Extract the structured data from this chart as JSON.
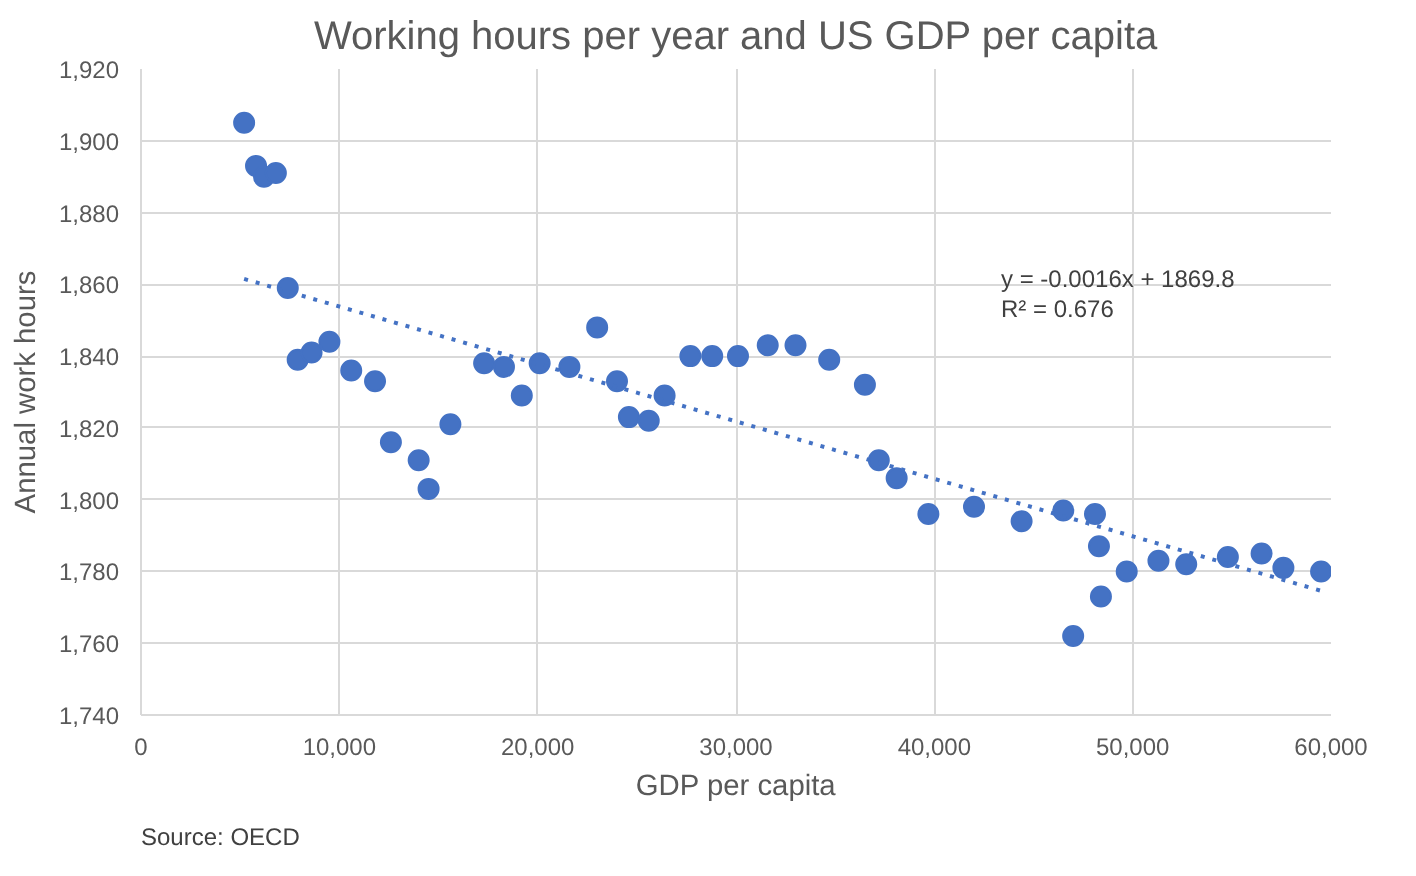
{
  "chart_data": {
    "type": "scatter",
    "title": "Working hours per year and US GDP per capita",
    "xlabel": "GDP per capita",
    "ylabel": "Annual work hours",
    "xlim": [
      0,
      60000
    ],
    "xticks": [
      {
        "value": 0,
        "label": "0"
      },
      {
        "value": 10000,
        "label": "10,000"
      },
      {
        "value": 20000,
        "label": "20,000"
      },
      {
        "value": 30000,
        "label": "30,000"
      },
      {
        "value": 40000,
        "label": "40,000"
      },
      {
        "value": 50000,
        "label": "50,000"
      },
      {
        "value": 60000,
        "label": "60,000"
      }
    ],
    "ylim": [
      1740,
      1920
    ],
    "yticks": [
      {
        "value": 1740,
        "label": "1,740"
      },
      {
        "value": 1760,
        "label": "1,760"
      },
      {
        "value": 1780,
        "label": "1,780"
      },
      {
        "value": 1800,
        "label": "1,800"
      },
      {
        "value": 1820,
        "label": "1,820"
      },
      {
        "value": 1840,
        "label": "1,840"
      },
      {
        "value": 1860,
        "label": "1,860"
      },
      {
        "value": 1880,
        "label": "1,880"
      },
      {
        "value": 1900,
        "label": "1,900"
      },
      {
        "value": 1920,
        "label": "1,920"
      }
    ],
    "grid": true,
    "series": [
      {
        "marker": "circle",
        "color": "#4472c4",
        "x": [
          5200,
          5800,
          6200,
          6800,
          7400,
          7900,
          8600,
          9500,
          10600,
          11800,
          12600,
          14000,
          14500,
          15600,
          17300,
          18300,
          19200,
          20100,
          21600,
          23000,
          24000,
          24600,
          25600,
          26400,
          27700,
          28800,
          30100,
          31600,
          33000,
          34700,
          36500,
          37200,
          38100,
          39700,
          42000,
          44400,
          46500,
          47000,
          48100,
          48300,
          48400,
          49700,
          51300,
          52700,
          54800,
          56500,
          57600,
          59500
        ],
        "values": [
          1905,
          1893,
          1890,
          1891,
          1859,
          1839,
          1841,
          1844,
          1836,
          1833,
          1816,
          1811,
          1803,
          1821,
          1838,
          1837,
          1829,
          1838,
          1837,
          1848,
          1833,
          1823,
          1822,
          1829,
          1840,
          1840,
          1840,
          1843,
          1843,
          1839,
          1832,
          1811,
          1806,
          1796,
          1798,
          1794,
          1797,
          1762,
          1796,
          1787,
          1773,
          1780,
          1783,
          1782,
          1784,
          1785,
          1781,
          1780
        ]
      },
      {
        "type": "line",
        "color": "#4472c4",
        "line_style": "dotted",
        "x": [
          5200,
          59500
        ],
        "values": [
          1861.5,
          1774.6
        ]
      }
    ],
    "annotations": [
      "y = -0.0016x + 1869.8",
      "R² = 0.676",
      "Source: OECD"
    ]
  }
}
